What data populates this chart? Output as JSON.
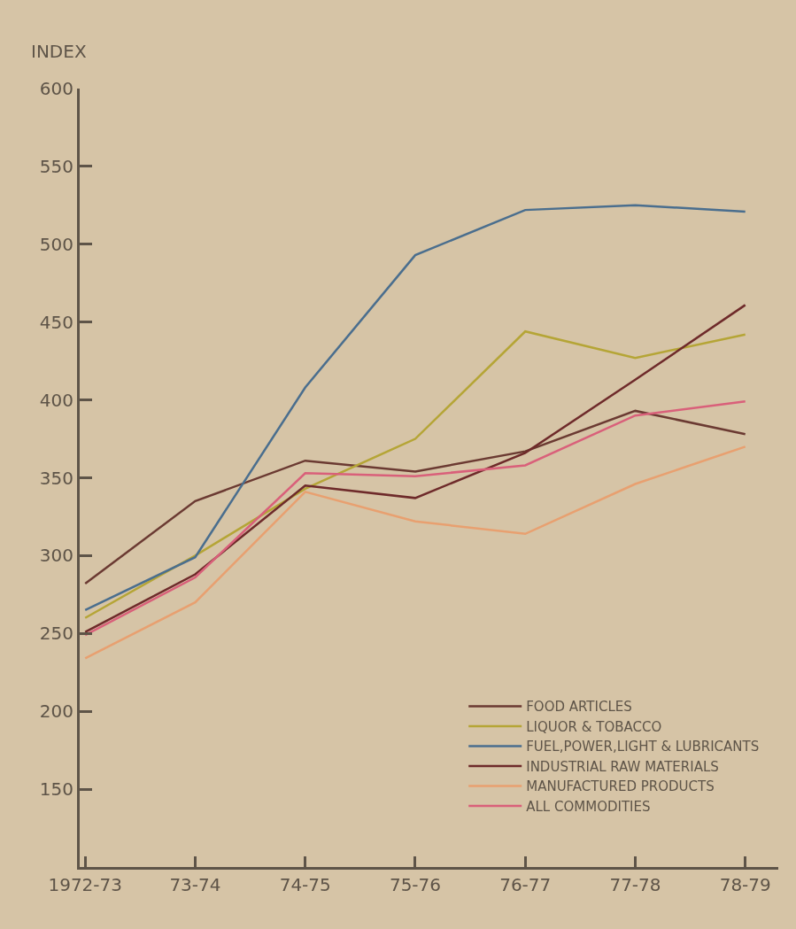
{
  "chart_data": {
    "type": "line",
    "ylabel": "INDEX",
    "categories": [
      "1972-73",
      "73-74",
      "74-75",
      "75-76",
      "76-77",
      "77-78",
      "78-79"
    ],
    "series": [
      {
        "name": "FOOD ARTICLES",
        "color": "#6b3a32",
        "values": [
          282,
          335,
          361,
          354,
          367,
          393,
          378
        ]
      },
      {
        "name": "LIQUOR & TOBACCO",
        "color": "#b5a536",
        "values": [
          260,
          300,
          343,
          375,
          444,
          427,
          442
        ]
      },
      {
        "name": "FUEL,POWER,LIGHT & LUBRICANTS",
        "color": "#4a6e8e",
        "values": [
          265,
          299,
          408,
          493,
          522,
          525,
          521
        ]
      },
      {
        "name": "INDUSTRIAL RAW MATERIALS",
        "color": "#6e2a2a",
        "values": [
          251,
          288,
          345,
          337,
          366,
          413,
          461
        ]
      },
      {
        "name": "MANUFACTURED PRODUCTS",
        "color": "#e8a070",
        "values": [
          234,
          270,
          341,
          322,
          314,
          346,
          370
        ]
      },
      {
        "name": "ALL COMMODITIES",
        "color": "#d9607a",
        "values": [
          249,
          286,
          353,
          351,
          358,
          390,
          399
        ]
      }
    ],
    "ylim": [
      100,
      600
    ],
    "yticks": [
      150,
      200,
      250,
      300,
      350,
      400,
      450,
      500,
      550,
      600
    ],
    "grid": false,
    "legend": "bottom right",
    "marker": "none",
    "line_style": "solid"
  }
}
